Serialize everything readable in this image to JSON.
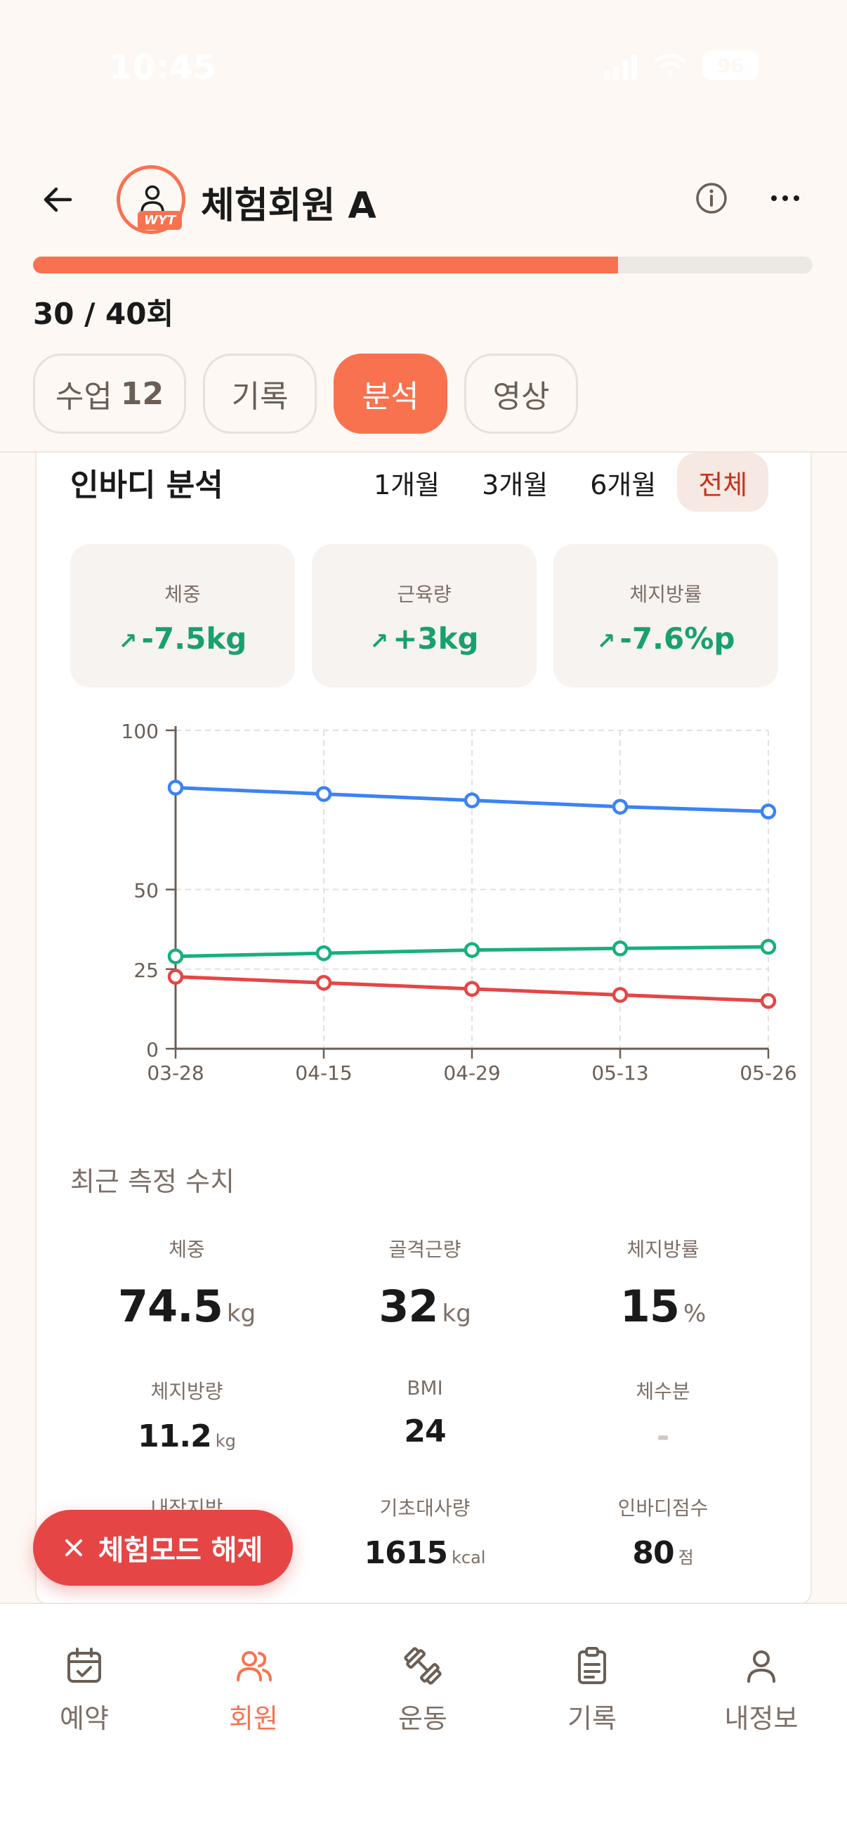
{
  "status_bar": {
    "time": "10:45",
    "battery": "96"
  },
  "header": {
    "member_name": "체험회원 A",
    "badge": "WYT",
    "icons": [
      "back-arrow-icon",
      "person-icon",
      "info-icon",
      "more-icon"
    ]
  },
  "progress": {
    "text": "30 / 40회",
    "value_fraction": 0.75,
    "color": "#f97250"
  },
  "tabs": [
    {
      "label": "수업",
      "count": "12",
      "active": false
    },
    {
      "label": "기록",
      "active": false
    },
    {
      "label": "분석",
      "active": true
    },
    {
      "label": "영상",
      "active": false
    }
  ],
  "inbody": {
    "title": "인바디 분석",
    "ranges": [
      "1개월",
      "3개월",
      "6개월",
      "전체"
    ],
    "selected_range": "전체",
    "summary": [
      {
        "label": "체중",
        "value": "-7.5kg"
      },
      {
        "label": "근육량",
        "value": "+3kg"
      },
      {
        "label": "체지방률",
        "value": "-7.6%p"
      }
    ],
    "summary_color": "#18a06d"
  },
  "chart_data": {
    "type": "line",
    "categories": [
      "03-28",
      "04-15",
      "04-29",
      "05-13",
      "05-26"
    ],
    "yticks": [
      "100",
      "50",
      "25",
      "0"
    ],
    "ylim": [
      0,
      100
    ],
    "grid": true,
    "series": [
      {
        "color": "#3b82f6",
        "values": [
          82,
          80,
          78,
          76,
          74.5
        ]
      },
      {
        "color": "#18b07a",
        "values": [
          29,
          30,
          31,
          31.5,
          32
        ]
      },
      {
        "color": "#e64545",
        "values": [
          22.6,
          20.7,
          18.8,
          16.9,
          15
        ]
      }
    ]
  },
  "recent": {
    "title": "최근 측정 수치",
    "metrics": [
      {
        "label": "체중",
        "value": "74.5",
        "unit": "kg"
      },
      {
        "label": "골격근량",
        "value": "32",
        "unit": "kg"
      },
      {
        "label": "체지방률",
        "value": "15",
        "unit": "%"
      },
      {
        "label": "체지방량",
        "value": "11.2",
        "unit": "kg"
      },
      {
        "label": "BMI",
        "value": "24",
        "unit": ""
      },
      {
        "label": "체수분",
        "value": "-",
        "unit": ""
      },
      {
        "label": "내장지방",
        "value": "",
        "unit": ""
      },
      {
        "label": "기초대사량",
        "value": "1615",
        "unit": "kcal"
      },
      {
        "label": "인바디점수",
        "value": "80",
        "unit": "점"
      }
    ]
  },
  "fab": {
    "label": "체험모드 해제",
    "icon": "close-icon"
  },
  "bottom_nav": [
    {
      "label": "예약",
      "icon": "calendar-check-icon",
      "active": false
    },
    {
      "label": "회원",
      "icon": "users-icon",
      "active": true
    },
    {
      "label": "운동",
      "icon": "dumbbell-icon",
      "active": false
    },
    {
      "label": "기록",
      "icon": "clipboard-icon",
      "active": false
    },
    {
      "label": "내정보",
      "icon": "user-icon",
      "active": false
    }
  ]
}
